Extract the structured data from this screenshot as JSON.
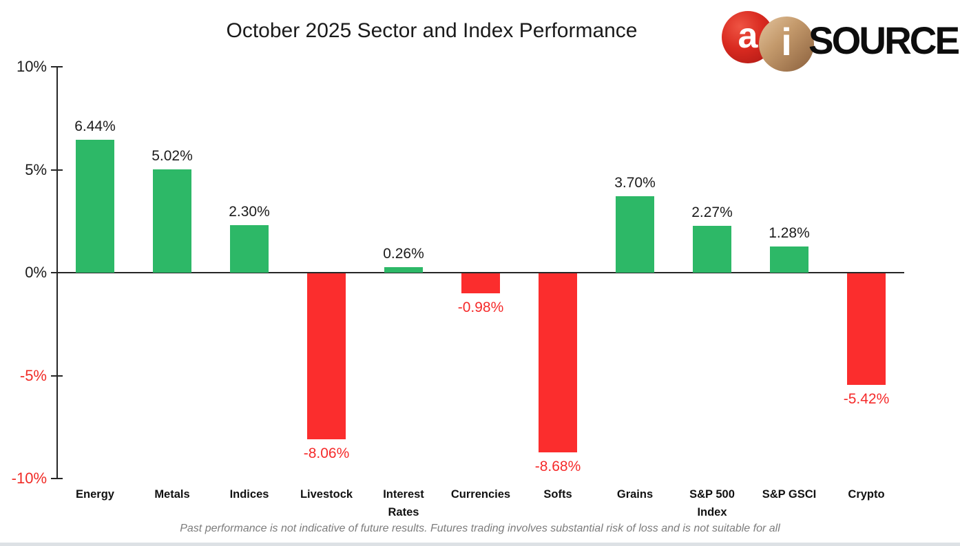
{
  "title": "October 2025 Sector and Index Performance",
  "logo": {
    "a_letter": "a",
    "i_letter": "i",
    "text": "SOURCE"
  },
  "footer": "Past performance is not indicative of future results. Futures trading involves substantial risk of loss and is not suitable for all",
  "colors": {
    "positive_bar": "#2db867",
    "negative_bar": "#fb2d2d",
    "negative_text": "#f52a2a",
    "axis": "#262626",
    "footer_text": "#7c7c7c",
    "logo_red": "#d92a20",
    "logo_tan": "#c49a6c"
  },
  "chart_data": {
    "type": "bar",
    "title": "October 2025 Sector and Index Performance",
    "categories": [
      "Energy",
      "Metals",
      "Indices",
      "Livestock",
      "Interest Rates",
      "Currencies",
      "Softs",
      "Grains",
      "S&P 500 Index",
      "S&P GSCI",
      "Crypto"
    ],
    "values": [
      6.44,
      5.02,
      2.3,
      -8.06,
      0.26,
      -0.98,
      -8.68,
      3.7,
      2.27,
      1.28,
      -5.42
    ],
    "value_labels": [
      "6.44%",
      "5.02%",
      "2.30%",
      "-8.06%",
      "0.26%",
      "-0.98%",
      "-8.68%",
      "3.70%",
      "2.27%",
      "1.28%",
      "-5.42%"
    ],
    "xlabel": "",
    "ylabel": "",
    "ylim": [
      -10,
      10
    ],
    "ytick_values": [
      10,
      5,
      0,
      -5,
      -10
    ],
    "ytick_labels": [
      "10%",
      "5%",
      "0%",
      "-5%",
      "-10%"
    ],
    "grid": false,
    "legend": "none",
    "bar_color_rule": "green if positive, red if negative"
  }
}
